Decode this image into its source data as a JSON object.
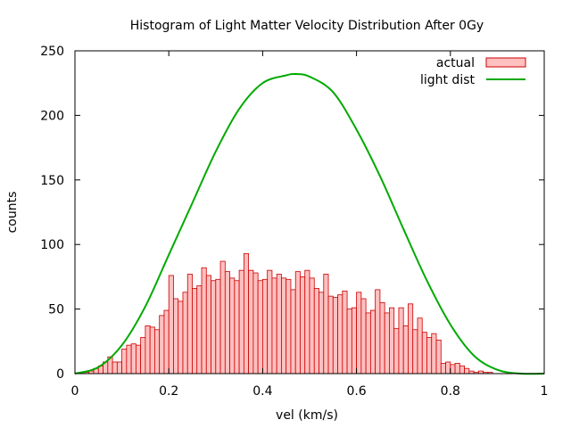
{
  "chart_data": {
    "type": "bar",
    "title": "Histogram of Light Matter Velocity Distribution After 0Gy",
    "xlabel": "vel (km/s)",
    "ylabel": "counts",
    "xlim": [
      0,
      1
    ],
    "ylim": [
      0,
      250
    ],
    "x_ticks": [
      "0",
      "0.2",
      "0.4",
      "0.6",
      "0.8",
      "1"
    ],
    "y_ticks": [
      "0",
      "50",
      "100",
      "150",
      "200",
      "250"
    ],
    "grid": false,
    "legend_position": "top-right",
    "bin_width": 0.01,
    "colors": {
      "bar_fill": "#ffc0c0",
      "bar_edge": "#cc0000",
      "curve": "#00aa00"
    },
    "series": [
      {
        "name": "actual",
        "kind": "histogram",
        "x": [
          0.005,
          0.015,
          0.025,
          0.035,
          0.045,
          0.055,
          0.065,
          0.075,
          0.085,
          0.095,
          0.105,
          0.115,
          0.125,
          0.135,
          0.145,
          0.155,
          0.165,
          0.175,
          0.185,
          0.195,
          0.205,
          0.215,
          0.225,
          0.235,
          0.245,
          0.255,
          0.265,
          0.275,
          0.285,
          0.295,
          0.305,
          0.315,
          0.325,
          0.335,
          0.345,
          0.355,
          0.365,
          0.375,
          0.385,
          0.395,
          0.405,
          0.415,
          0.425,
          0.435,
          0.445,
          0.455,
          0.465,
          0.475,
          0.485,
          0.495,
          0.505,
          0.515,
          0.525,
          0.535,
          0.545,
          0.555,
          0.565,
          0.575,
          0.585,
          0.595,
          0.605,
          0.615,
          0.625,
          0.635,
          0.645,
          0.655,
          0.665,
          0.675,
          0.685,
          0.695,
          0.705,
          0.715,
          0.725,
          0.735,
          0.745,
          0.755,
          0.765,
          0.775,
          0.785,
          0.795,
          0.805,
          0.815,
          0.825,
          0.835,
          0.845,
          0.855,
          0.865,
          0.875,
          0.885,
          0.895,
          0.905
        ],
        "values": [
          0,
          0,
          1,
          2,
          4,
          6,
          9,
          13,
          9,
          9,
          19,
          22,
          23,
          22,
          28,
          37,
          36,
          34,
          45,
          49,
          76,
          58,
          56,
          63,
          77,
          66,
          68,
          82,
          76,
          72,
          73,
          87,
          79,
          74,
          72,
          80,
          93,
          80,
          78,
          72,
          73,
          80,
          74,
          77,
          74,
          73,
          65,
          79,
          75,
          80,
          74,
          66,
          63,
          77,
          60,
          59,
          61,
          64,
          50,
          51,
          63,
          58,
          47,
          49,
          65,
          55,
          47,
          51,
          35,
          51,
          37,
          54,
          34,
          43,
          32,
          28,
          31,
          26,
          8,
          9,
          7,
          8,
          6,
          4,
          2,
          1,
          2,
          1,
          1,
          0,
          0
        ]
      },
      {
        "name": "light dist",
        "kind": "curve",
        "x": [
          0,
          0.05,
          0.1,
          0.15,
          0.2,
          0.25,
          0.3,
          0.35,
          0.4,
          0.45,
          0.47,
          0.5,
          0.55,
          0.6,
          0.65,
          0.7,
          0.75,
          0.8,
          0.85,
          0.9,
          0.95,
          1.0
        ],
        "values": [
          0,
          5,
          22,
          52,
          92,
          132,
          172,
          205,
          225,
          231,
          232,
          230,
          218,
          189,
          153,
          112,
          72,
          38,
          14,
          3,
          0,
          0
        ]
      }
    ]
  }
}
